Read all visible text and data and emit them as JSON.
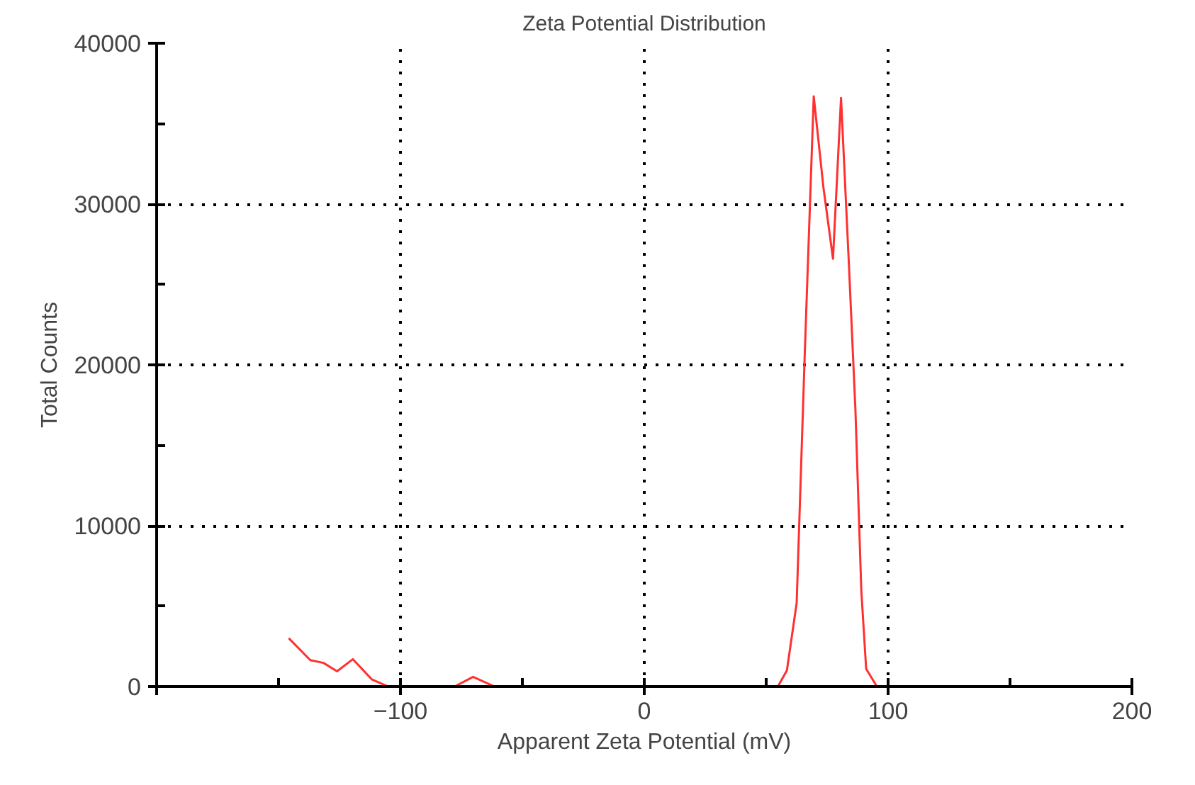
{
  "chart_data": {
    "type": "line",
    "title": "Zeta Potential Distribution",
    "xlabel": "Apparent Zeta Potential (mV)",
    "ylabel": "Total Counts",
    "x": [
      -145.8,
      -137,
      -131.6,
      -126,
      -119.5,
      -111.8,
      -105,
      -77.8,
      -70.2,
      -61.4,
      0,
      54.8,
      58.5,
      62.5,
      65.8,
      69.5,
      73.5,
      77.4,
      80.7,
      84,
      86.6,
      89,
      91,
      95.4,
      148
    ],
    "series": [
      {
        "color": "#ff3030",
        "values": [
          3000,
          1640,
          1470,
          950,
          1700,
          450,
          0,
          0,
          600,
          0,
          0,
          0,
          1000,
          5200,
          20600,
          36700,
          31000,
          26600,
          36600,
          26000,
          17200,
          6000,
          1100,
          0,
          0
        ]
      }
    ],
    "xlim": [
      -200,
      200
    ],
    "xticks": [
      {
        "value": -200,
        "label": null
      },
      -100,
      0,
      100,
      200
    ],
    "ylim": [
      0,
      40000
    ],
    "yticks": [
      0,
      10000,
      20000,
      30000,
      40000
    ],
    "grid": true,
    "line_style": "solid",
    "marker": "none"
  }
}
